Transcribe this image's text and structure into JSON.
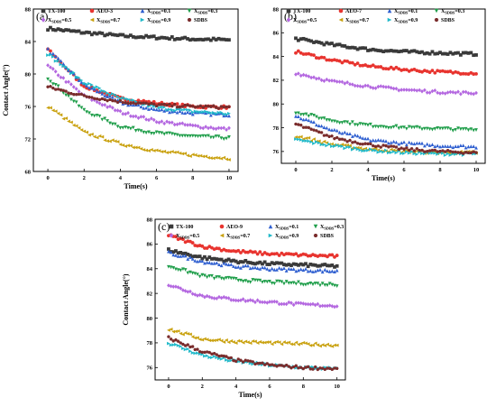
{
  "chart_data": [
    {
      "type": "line",
      "panel_label": "(a)",
      "xlabel": "Time(s)",
      "ylabel": "Contact Angle(°)",
      "xlim": [
        -0.8,
        10.5
      ],
      "ylim": [
        68,
        88
      ],
      "xticks": [
        "0",
        "2",
        "4",
        "6",
        "8",
        "10"
      ],
      "yticks": [
        "68",
        "72",
        "76",
        "80",
        "84",
        "88"
      ],
      "series": [
        {
          "name": "TX-100",
          "marker": "square",
          "color": "#3a3a3a",
          "values": [
            85.6,
            85.1,
            84.7,
            84.5,
            84.3,
            84.2
          ]
        },
        {
          "name": "AEO-3",
          "marker": "circle",
          "color": "#e8342f",
          "values": [
            83.0,
            78.5,
            77.0,
            76.4,
            76.0,
            75.9
          ]
        },
        {
          "name": "XSDBS=0.1",
          "sub": "SDBS",
          "marker": "triangle-up",
          "color": "#2f5fd0",
          "values": [
            83.0,
            78.7,
            76.5,
            75.6,
            75.2,
            75.0
          ]
        },
        {
          "name": "XSDBS=0.3",
          "sub": "SDBS",
          "marker": "triangle-down",
          "color": "#1f9e4a",
          "values": [
            79.5,
            75.5,
            73.5,
            72.7,
            72.3,
            72.1
          ]
        },
        {
          "name": "XSDBS=0.5",
          "sub": "SDBS",
          "marker": "diamond",
          "color": "#b468e0",
          "values": [
            81.0,
            77.3,
            75.3,
            74.2,
            73.6,
            73.2
          ]
        },
        {
          "name": "XSDBS=0.7",
          "sub": "SDBS",
          "marker": "triangle-left",
          "color": "#c9a10e",
          "values": [
            76.0,
            72.8,
            71.4,
            70.5,
            70.0,
            69.6
          ]
        },
        {
          "name": "XSDBS=0.9",
          "sub": "SDBS",
          "marker": "triangle-right",
          "color": "#20b9c9",
          "values": [
            82.5,
            79.0,
            77.0,
            75.9,
            75.4,
            75.1
          ]
        },
        {
          "name": "SDBS",
          "marker": "hexagon",
          "color": "#7a2c2c",
          "values": [
            78.4,
            77.3,
            76.6,
            76.2,
            76.0,
            75.9
          ]
        }
      ]
    },
    {
      "type": "line",
      "panel_label": "(b)",
      "xlabel": "Time(s)",
      "ylabel": "",
      "xlim": [
        -0.8,
        10.5
      ],
      "ylim": [
        75,
        88
      ],
      "xticks": [
        "0",
        "2",
        "4",
        "6",
        "8",
        "10"
      ],
      "yticks": [
        "76",
        "78",
        "80",
        "82",
        "84",
        "86",
        "88"
      ],
      "series": [
        {
          "name": "TX-100",
          "marker": "square",
          "color": "#3a3a3a",
          "values": [
            85.5,
            85.0,
            84.6,
            84.4,
            84.3,
            84.2
          ]
        },
        {
          "name": "AEO-7",
          "marker": "circle",
          "color": "#e8342f",
          "values": [
            84.4,
            83.7,
            83.2,
            82.9,
            82.7,
            82.6
          ]
        },
        {
          "name": "XSDBS=0.1",
          "sub": "SDBS",
          "marker": "triangle-up",
          "color": "#2f5fd0",
          "values": [
            79.0,
            77.8,
            77.0,
            76.7,
            76.5,
            76.4
          ]
        },
        {
          "name": "XSDBS=0.3",
          "sub": "SDBS",
          "marker": "triangle-down",
          "color": "#1f9e4a",
          "values": [
            79.3,
            78.6,
            78.2,
            78.0,
            77.9,
            77.8
          ]
        },
        {
          "name": "XSDBS=0.5",
          "sub": "SDBS",
          "marker": "diamond",
          "color": "#b468e0",
          "values": [
            82.6,
            81.9,
            81.5,
            81.2,
            81.0,
            80.9
          ]
        },
        {
          "name": "XSDBS=0.7",
          "sub": "SDBS",
          "marker": "triangle-left",
          "color": "#c9a10e",
          "values": [
            77.3,
            76.6,
            76.2,
            76.0,
            75.9,
            75.9
          ]
        },
        {
          "name": "XSDBS=0.9",
          "sub": "SDBS",
          "marker": "triangle-right",
          "color": "#20b9c9",
          "values": [
            77.0,
            76.5,
            76.1,
            75.9,
            75.8,
            75.8
          ]
        },
        {
          "name": "SDBS",
          "marker": "hexagon",
          "color": "#7a2c2c",
          "values": [
            78.3,
            77.2,
            76.6,
            76.2,
            76.0,
            75.9
          ]
        }
      ]
    },
    {
      "type": "line",
      "panel_label": "(c)",
      "xlabel": "Time(s)",
      "ylabel": "Contact Angle(°)",
      "xlim": [
        -0.8,
        10.5
      ],
      "ylim": [
        75,
        88
      ],
      "xticks": [
        "0",
        "2",
        "4",
        "6",
        "8",
        "10"
      ],
      "yticks": [
        "76",
        "78",
        "80",
        "82",
        "84",
        "86",
        "88"
      ],
      "series": [
        {
          "name": "TX-100",
          "marker": "square",
          "color": "#3a3a3a",
          "values": [
            85.5,
            84.9,
            84.6,
            84.4,
            84.3,
            84.2
          ]
        },
        {
          "name": "AEO-9",
          "marker": "circle",
          "color": "#e8342f",
          "values": [
            86.7,
            85.8,
            85.4,
            85.2,
            85.1,
            85.0
          ]
        },
        {
          "name": "XSDBS=0.1",
          "sub": "SDBS",
          "marker": "triangle-up",
          "color": "#2f5fd0",
          "values": [
            85.3,
            84.6,
            84.2,
            84.0,
            83.9,
            83.8
          ]
        },
        {
          "name": "XSDBS=0.3",
          "sub": "SDBS",
          "marker": "triangle-down",
          "color": "#1f9e4a",
          "values": [
            84.2,
            83.4,
            83.1,
            82.9,
            82.8,
            82.7
          ]
        },
        {
          "name": "XSDBS=0.5",
          "sub": "SDBS",
          "marker": "diamond",
          "color": "#b468e0",
          "values": [
            82.7,
            81.8,
            81.5,
            81.3,
            81.1,
            81.0
          ]
        },
        {
          "name": "XSDBS=0.7",
          "sub": "SDBS",
          "marker": "triangle-left",
          "color": "#c9a10e",
          "values": [
            79.1,
            78.3,
            78.1,
            78.0,
            77.9,
            77.8
          ]
        },
        {
          "name": "XSDBS=0.9",
          "sub": "SDBS",
          "marker": "triangle-right",
          "color": "#20b9c9",
          "values": [
            78.0,
            77.0,
            76.5,
            76.2,
            76.0,
            75.9
          ]
        },
        {
          "name": "SDBS",
          "marker": "hexagon",
          "color": "#7a2c2c",
          "values": [
            78.4,
            77.3,
            76.6,
            76.2,
            76.0,
            75.9
          ]
        }
      ]
    }
  ],
  "time_points": [
    0,
    2,
    4,
    6,
    8,
    10
  ]
}
